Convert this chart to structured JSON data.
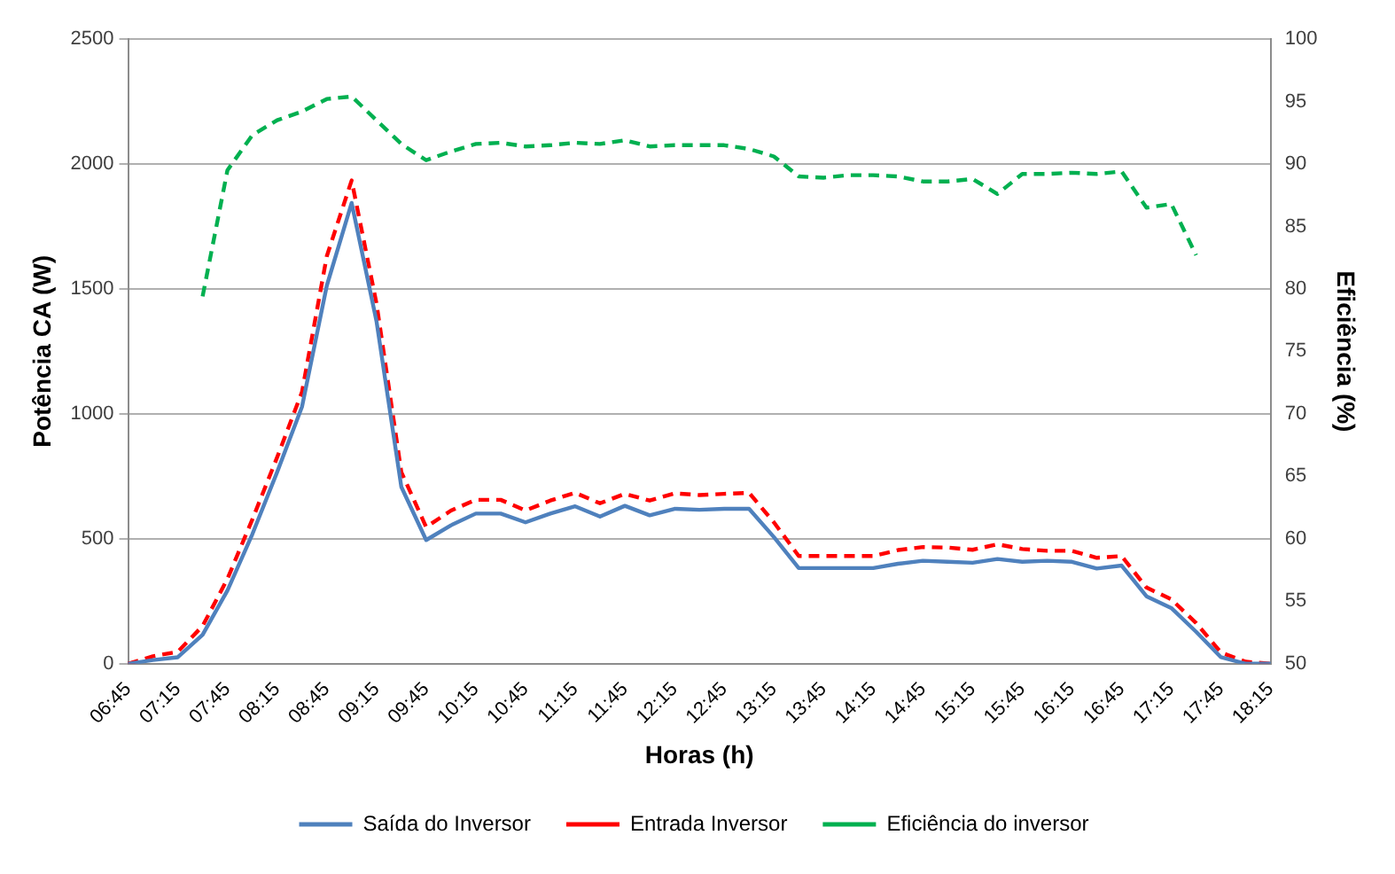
{
  "chart_data": {
    "type": "line",
    "xlabel": "Horas (h)",
    "ylabel": "Potência CA (W)",
    "y2label": "Eficiência (%)",
    "categories": [
      "06:45",
      null,
      "07:15",
      null,
      "07:45",
      null,
      "08:15",
      null,
      "08:45",
      null,
      "09:15",
      null,
      "09:45",
      null,
      "10:15",
      null,
      "10:45",
      null,
      "11:15",
      null,
      "11:45",
      null,
      "12:15",
      null,
      "12:45",
      null,
      "13:15",
      null,
      "13:45",
      null,
      "14:15",
      null,
      "14:45",
      null,
      "15:15",
      null,
      "15:45",
      null,
      "16:15",
      null,
      "16:45",
      null,
      "17:15",
      null,
      "17:45",
      null,
      "18:15"
    ],
    "series": [
      {
        "name": "Saída do Inversor",
        "color": "#4f81bd",
        "line_style": "solid",
        "values": [
          0,
          15,
          26,
          116,
          293,
          518,
          767,
          1028,
          1513,
          1844,
          1371,
          708,
          495,
          554,
          601,
          601,
          566,
          601,
          630,
          589,
          632,
          594,
          620,
          616,
          620,
          620,
          507,
          383,
          383,
          383,
          383,
          400,
          412,
          408,
          404,
          419,
          408,
          412,
          408,
          381,
          393,
          270,
          223,
          128,
          26,
          0,
          0
        ]
      },
      {
        "name": "Entrada Inversor",
        "color": "#ff0000",
        "line_style": "dashed",
        "values": [
          0,
          30,
          48,
          151,
          340,
          577,
          826,
          1087,
          1631,
          1934,
          1442,
          767,
          547,
          613,
          656,
          656,
          613,
          653,
          684,
          642,
          680,
          653,
          682,
          675,
          680,
          684,
          566,
          431,
          431,
          431,
          431,
          455,
          467,
          465,
          456,
          478,
          459,
          452,
          452,
          424,
          431,
          305,
          258,
          163,
          45,
          8,
          0
        ]
      },
      {
        "name": "Eficiência do inversor",
        "color": "#00b050",
        "line_style": "dashed",
        "axis": "y2",
        "values": [
          null,
          null,
          null,
          79.4,
          89.5,
          92.3,
          93.5,
          94.2,
          95.2,
          95.4,
          93.5,
          91.6,
          90.3,
          91.0,
          91.6,
          91.7,
          91.4,
          91.5,
          91.7,
          91.6,
          91.9,
          91.4,
          91.5,
          91.5,
          91.5,
          91.2,
          90.6,
          89.0,
          88.9,
          89.1,
          89.1,
          89.0,
          88.6,
          88.6,
          88.8,
          87.6,
          89.2,
          89.2,
          89.3,
          89.2,
          89.4,
          86.5,
          86.8,
          82.7,
          null,
          null,
          null
        ]
      }
    ],
    "ylim": [
      0,
      2500
    ],
    "yticks": [
      0,
      500,
      1000,
      1500,
      2000,
      2500
    ],
    "y2lim": [
      50,
      100
    ],
    "y2ticks": [
      50,
      55,
      60,
      65,
      70,
      75,
      80,
      85,
      90,
      95,
      100
    ],
    "grid": "y",
    "legend": "bottom",
    "marker": "none"
  }
}
